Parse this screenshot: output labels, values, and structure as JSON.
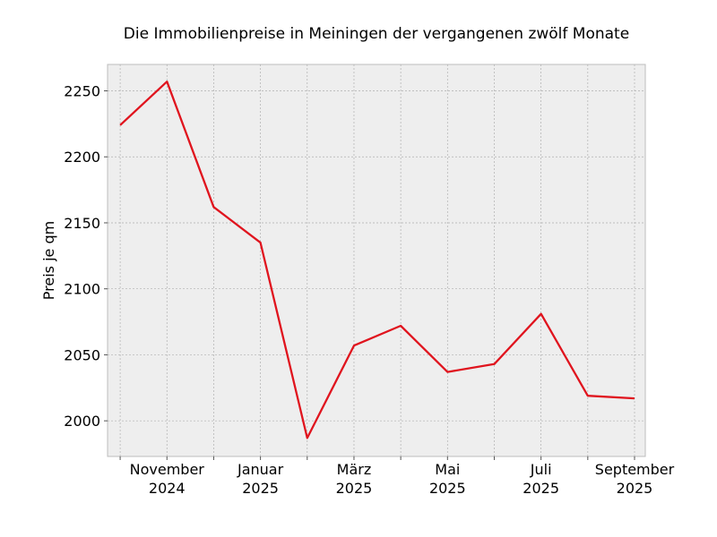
{
  "chart_data": {
    "type": "line",
    "title": "Die Immobilienpreise in Meiningen der vergangenen zwölf Monate",
    "xlabel": "",
    "ylabel": "Preis je qm",
    "x": [
      "2024-10",
      "2024-11",
      "2024-12",
      "2025-01",
      "2025-02",
      "2025-03",
      "2025-04",
      "2025-05",
      "2025-06",
      "2025-07",
      "2025-08",
      "2025-09"
    ],
    "x_tick_labels": [
      {
        "x": "2024-11",
        "line1": "November",
        "line2": "2024"
      },
      {
        "x": "2025-01",
        "line1": "Januar",
        "line2": "2025"
      },
      {
        "x": "2025-03",
        "line1": "März",
        "line2": "2025"
      },
      {
        "x": "2025-05",
        "line1": "Mai",
        "line2": "2025"
      },
      {
        "x": "2025-07",
        "line1": "Juli",
        "line2": "2025"
      },
      {
        "x": "2025-09",
        "line1": "September",
        "line2": "2025"
      }
    ],
    "series": [
      {
        "values": [
          2224,
          2257,
          2162,
          2135,
          1987,
          2057,
          2072,
          2037,
          2043,
          2081,
          2019,
          2017
        ],
        "color": "#e0141e"
      }
    ],
    "ylim": [
      1973,
      2270
    ],
    "yticks": [
      2000,
      2050,
      2100,
      2150,
      2200,
      2250
    ],
    "grid": true,
    "background": "#eeeeee"
  }
}
